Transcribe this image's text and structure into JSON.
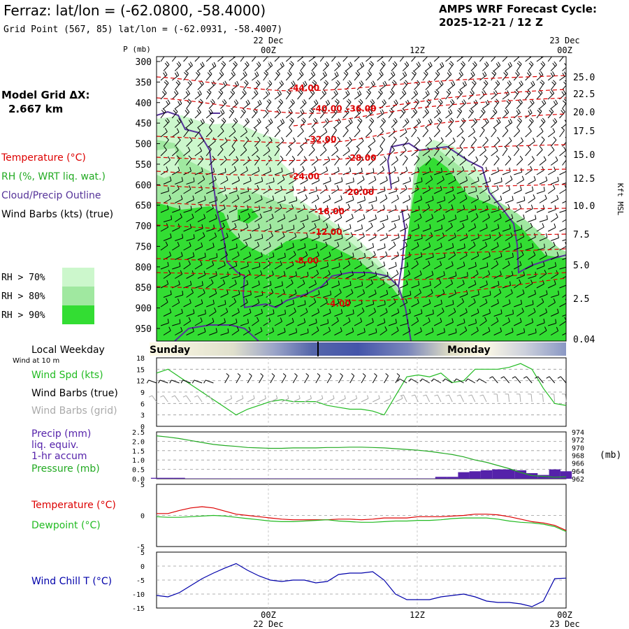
{
  "header": {
    "station_title": "Ferraz:  lat/lon = (-62.0800, -58.4000)",
    "grid_point": "Grid Point (567, 85) lat/lon = (-62.0931, -58.4007)",
    "forecast_title": "AMPS WRF Forecast Cycle:",
    "forecast_cycle": "2025-12-21 / 12  Z"
  },
  "time_axis": {
    "top_dates": [
      "22 Dec",
      "23 Dec"
    ],
    "ticks": [
      "00Z",
      "12Z",
      "00Z"
    ],
    "bottom_dates": [
      "22 Dec",
      "23 Dec"
    ]
  },
  "left_panel": {
    "model_grid_label": "Model Grid ΔX:",
    "model_grid_value": "2.667 km",
    "temperature_label": "Temperature (°C)",
    "rh_label": "RH (%, WRT liq. wat.)",
    "cloud_label": "Cloud/Precip Outline",
    "wind_barbs_label": "Wind Barbs (kts) (true)",
    "rh_legend": [
      {
        "label": "RH > 70%",
        "color": "#ccf7cc"
      },
      {
        "label": "RH > 80%",
        "color": "#a0e8a0"
      },
      {
        "label": "RH > 90%",
        "color": "#33dd33"
      }
    ],
    "weekday_label": "Local Weekday",
    "wind10m_label": "Wind at 10 m",
    "wind_spd_label": "Wind Spd (kts)",
    "barbs_true_label": "Wind Barbs (true)",
    "barbs_grid_label": "Wind Barbs (grid)",
    "precip_label": "Precip (mm)",
    "liq_label": "liq. equiv.",
    "accum_label": "1-hr accum",
    "pressure_label": "Pressure (mb)",
    "temp_label2": "Temperature (°C)",
    "dewpoint_label": "Dewpoint (°C)",
    "windchill_label": "Wind Chill T (°C)"
  },
  "weekday_bar": {
    "days": [
      "Sunday",
      "Monday"
    ]
  },
  "colors": {
    "temperature": "#dd0000",
    "rh70": "#ccf7cc",
    "rh80": "#a0e8a0",
    "rh90": "#33dd33",
    "cloud_outline": "#553399",
    "wind_speed": "#22bb22",
    "pressure": "#22aa22",
    "precip": "#5522aa",
    "dewpoint": "#22bb22",
    "windchill": "#0000aa"
  },
  "chart_data": [
    {
      "type": "heatmap",
      "name": "cross-section",
      "ylabel": "P (mb)",
      "right_label": "Kft MSL",
      "p_ticks": [
        "300",
        "350",
        "400",
        "450",
        "500",
        "550",
        "600",
        "650",
        "700",
        "750",
        "800",
        "850",
        "900",
        "950"
      ],
      "kft_ticks": [
        "25.0",
        "22.5",
        "20.0",
        "17.5",
        "15.0",
        "12.5",
        "10.0",
        "7.5",
        "5.0",
        "2.5",
        "0.04"
      ],
      "ylim": [
        300,
        975
      ],
      "x_hours": [
        0,
        36
      ],
      "temperature_contours": [
        {
          "label": "-44.00",
          "p": 365,
          "hour": 13.0
        },
        {
          "label": "-40.00",
          "p": 415,
          "hour": 15.0
        },
        {
          "label": "-36.00",
          "p": 415,
          "hour": 18.0
        },
        {
          "label": "-32.00",
          "p": 490,
          "hour": 14.5
        },
        {
          "label": "-28.00",
          "p": 535,
          "hour": 18.0
        },
        {
          "label": "-24.00",
          "p": 580,
          "hour": 13.0
        },
        {
          "label": "-20.00",
          "p": 618,
          "hour": 17.8
        },
        {
          "label": "-16.00",
          "p": 665,
          "hour": 15.2
        },
        {
          "label": "-12.00",
          "p": 715,
          "hour": 15.0
        },
        {
          "label": "-8.00",
          "p": 785,
          "hour": 13.2
        },
        {
          "label": "-4.00",
          "p": 890,
          "hour": 16.0
        }
      ]
    },
    {
      "type": "line",
      "name": "wind speed",
      "ylabel": "Wind Spd (kts)",
      "y_ticks": [
        "0",
        "3",
        "6",
        "9",
        "12",
        "15",
        "18"
      ],
      "ylim": [
        0,
        18
      ],
      "x": [
        0,
        1,
        2,
        3,
        4,
        5,
        6,
        7,
        8,
        9,
        10,
        11,
        12,
        13,
        14,
        15,
        16,
        17,
        18,
        19,
        20,
        21,
        22,
        23,
        24,
        25,
        26,
        27,
        28,
        29,
        30,
        31,
        32,
        33,
        34,
        35,
        36
      ],
      "series": [
        {
          "values": [
            14,
            15,
            13,
            11,
            9,
            7,
            5,
            3,
            4.5,
            5.5,
            6.5,
            7,
            6.5,
            6.5,
            6.5,
            5.5,
            5,
            4.5,
            4.5,
            4,
            3,
            8,
            13,
            13.5,
            13,
            14,
            11.5,
            12,
            15,
            15,
            15,
            15.5,
            16.5,
            15,
            10,
            6,
            5.5
          ]
        }
      ]
    },
    {
      "type": "bar",
      "name": "precip and pressure",
      "ylabel": "Precip (mm)",
      "y_ticks": [
        "0.0",
        "0.5",
        "1.0",
        "1.5",
        "2.0",
        "2.5"
      ],
      "ylim": [
        0,
        2.5
      ],
      "right_ticks": [
        "974",
        "972",
        "970",
        "968",
        "966",
        "964",
        "962"
      ],
      "right_ylim": [
        962,
        974
      ],
      "right_unit": "(mb)",
      "x": [
        0,
        1,
        2,
        3,
        4,
        5,
        6,
        7,
        8,
        9,
        10,
        11,
        12,
        13,
        14,
        15,
        16,
        17,
        18,
        19,
        20,
        21,
        22,
        23,
        24,
        25,
        26,
        27,
        28,
        29,
        30,
        31,
        32,
        33,
        34,
        35,
        36
      ],
      "precip": [
        0.05,
        0.05,
        0.05,
        0.02,
        0.02,
        0.02,
        0.02,
        0.02,
        0.02,
        0.02,
        0.02,
        0.02,
        0.02,
        0.02,
        0.02,
        0.02,
        0.02,
        0.02,
        0.02,
        0.02,
        0.02,
        0.02,
        0.02,
        0.02,
        0.02,
        0.1,
        0.1,
        0.35,
        0.4,
        0.45,
        0.5,
        0.5,
        0.45,
        0.3,
        0.2,
        0.5,
        0.4
      ],
      "pressure": [
        973.0,
        972.7,
        972.3,
        971.8,
        971.3,
        970.8,
        970.5,
        970.3,
        970.0,
        969.9,
        969.8,
        969.8,
        969.9,
        969.9,
        969.9,
        970.0,
        970.0,
        970.1,
        970.1,
        970.0,
        969.9,
        969.7,
        969.5,
        969.3,
        969.0,
        968.6,
        968.2,
        967.6,
        966.8,
        966.2,
        965.4,
        964.6,
        963.6,
        962.8,
        962.6,
        962.4,
        962.5
      ]
    },
    {
      "type": "line",
      "name": "temperature and dewpoint",
      "y_ticks": [
        "5",
        "0",
        "-5"
      ],
      "ylim": [
        -5,
        5
      ],
      "x": [
        0,
        1,
        2,
        3,
        4,
        5,
        6,
        7,
        8,
        9,
        10,
        11,
        12,
        13,
        14,
        15,
        16,
        17,
        18,
        19,
        20,
        21,
        22,
        23,
        24,
        25,
        26,
        27,
        28,
        29,
        30,
        31,
        32,
        33,
        34,
        35,
        36
      ],
      "series": [
        {
          "name": "Temperature (°C)",
          "values": [
            0.3,
            0.3,
            0.8,
            1.2,
            1.4,
            1.2,
            0.7,
            0.2,
            0.0,
            -0.2,
            -0.4,
            -0.6,
            -0.7,
            -0.7,
            -0.7,
            -0.7,
            -0.6,
            -0.6,
            -0.7,
            -0.6,
            -0.4,
            -0.4,
            -0.4,
            -0.2,
            -0.2,
            -0.2,
            -0.1,
            0.0,
            0.2,
            0.2,
            0.1,
            -0.2,
            -0.6,
            -1.0,
            -1.2,
            -1.6,
            -2.4
          ]
        },
        {
          "name": "Dewpoint (°C)",
          "values": [
            -0.2,
            -0.3,
            -0.3,
            -0.2,
            -0.1,
            0.0,
            -0.1,
            -0.3,
            -0.5,
            -0.7,
            -0.9,
            -1.0,
            -1.0,
            -0.9,
            -0.8,
            -0.7,
            -0.9,
            -1.0,
            -1.1,
            -1.1,
            -1.0,
            -0.9,
            -0.9,
            -0.8,
            -0.8,
            -0.7,
            -0.5,
            -0.4,
            -0.4,
            -0.4,
            -0.6,
            -0.9,
            -1.1,
            -1.2,
            -1.4,
            -1.8,
            -2.6
          ]
        }
      ]
    },
    {
      "type": "line",
      "name": "wind chill",
      "ylabel": "Wind Chill T (°C)",
      "y_ticks": [
        "5",
        "0",
        "-5",
        "-10",
        "-15"
      ],
      "ylim": [
        -15,
        5
      ],
      "x": [
        0,
        1,
        2,
        3,
        4,
        5,
        6,
        7,
        8,
        9,
        10,
        11,
        12,
        13,
        14,
        15,
        16,
        17,
        18,
        19,
        20,
        21,
        22,
        23,
        24,
        25,
        26,
        27,
        28,
        29,
        30,
        31,
        32,
        33,
        34,
        35,
        36
      ],
      "series": [
        {
          "values": [
            -10.5,
            -11,
            -9.5,
            -7,
            -4.5,
            -2.5,
            -0.7,
            0.9,
            -1.5,
            -3.5,
            -5,
            -5.5,
            -5,
            -5,
            -6,
            -5.5,
            -3,
            -2.5,
            -2.5,
            -2,
            -5,
            -10,
            -12,
            -12,
            -12,
            -11,
            -10.5,
            -10,
            -11,
            -12.5,
            -13,
            -13,
            -13.5,
            -14.5,
            -12.5,
            -4.5,
            -4.3
          ]
        }
      ]
    }
  ]
}
